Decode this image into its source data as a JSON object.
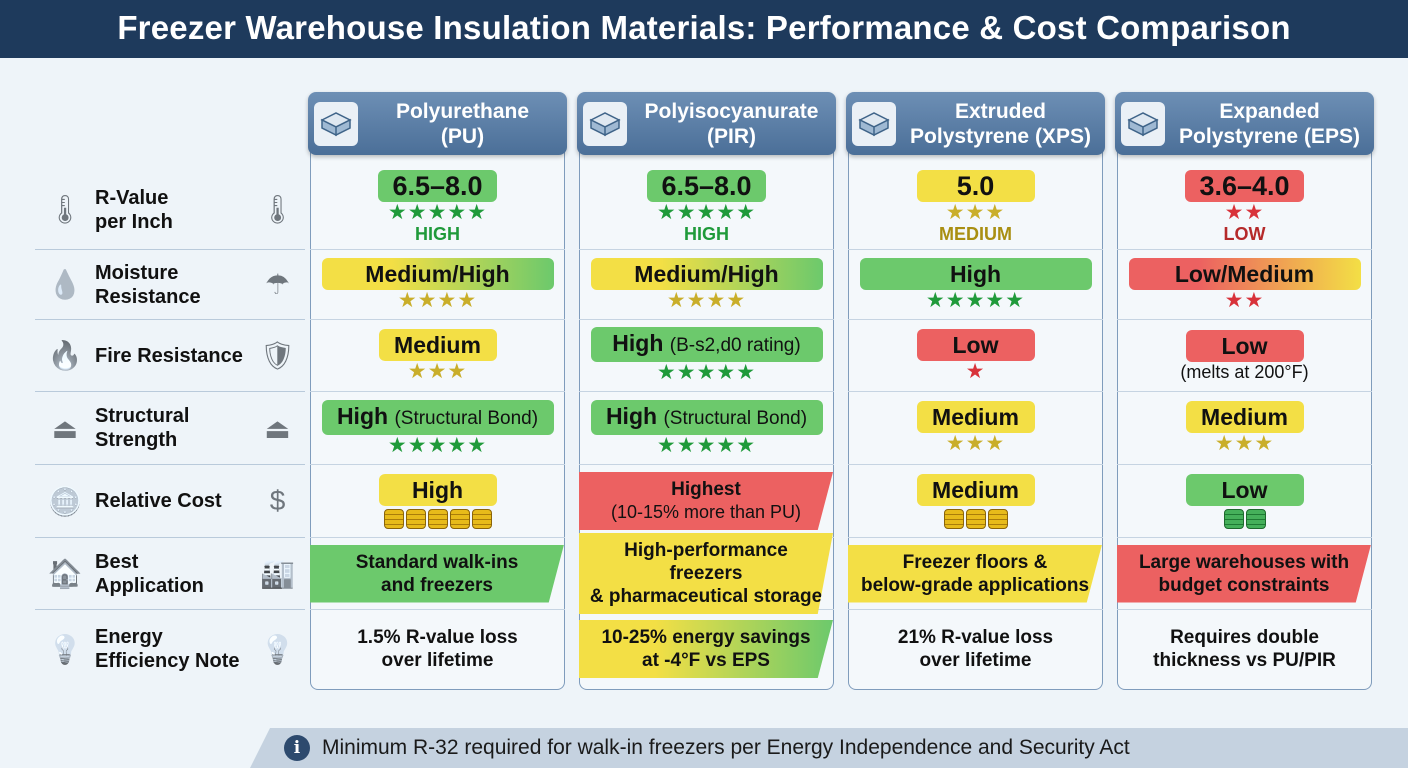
{
  "title": "Freezer Warehouse Insulation Materials: Performance & Cost Comparison",
  "colors": {
    "green": "#6cc96c",
    "yellow": "#f3df45",
    "red": "#ec6161",
    "star_green": "#1f9a3a",
    "star_gold": "#c9ae2a",
    "star_red": "#d8323a",
    "header": "#1e3a5c"
  },
  "rows": [
    {
      "label": "R-Value\nper Inch",
      "icon_left": "thermometer-up-icon",
      "icon_right": "thermometer-icon"
    },
    {
      "label": "Moisture\nResistance",
      "icon_left": "water-drops-icon",
      "icon_right": "umbrella-icon"
    },
    {
      "label": "Fire Resistance",
      "icon_left": "flame-shield-icon",
      "icon_right": "fire-shield-icon"
    },
    {
      "label": "Structural\nStrength",
      "icon_left": "weight-on-beam-icon",
      "icon_right": "weight-on-i-beam-icon"
    },
    {
      "label": "Relative Cost",
      "icon_left": "coin-stack-icon",
      "icon_right": "dollar-coin-icon"
    },
    {
      "label": "Best\nApplication",
      "icon_left": "warehouse-hand-icon",
      "icon_right": "warehouse-icon"
    },
    {
      "label": "Energy\nEfficiency Note",
      "icon_left": "lightbulb-leaf-icon",
      "icon_right": "lightbulb-leaf-icon"
    }
  ],
  "materials": [
    {
      "name": "Polyurethane\n(PU)",
      "icon": "panel-icon",
      "cells": [
        {
          "type": "rvalue",
          "text": "6.5–8.0",
          "color": "green",
          "stars": 5,
          "star_color": "star_green",
          "rating": "HIGH"
        },
        {
          "type": "wide",
          "text": "Medium/High",
          "color": "ylgr",
          "stars": 4,
          "star_color": "star_gold"
        },
        {
          "type": "small",
          "text": "Medium",
          "color": "yellow",
          "stars": 3,
          "star_color": "star_gold"
        },
        {
          "type": "wide",
          "text": "High",
          "sub": "(Structural Bond)",
          "color": "green",
          "stars": 5,
          "star_color": "star_green"
        },
        {
          "type": "cost",
          "text": "High",
          "color": "yellow",
          "coins": 5,
          "coin_color": "gold"
        },
        {
          "type": "banner",
          "text": "Standard walk-ins\nand freezers",
          "color": "green"
        },
        {
          "type": "plain",
          "text": "1.5% R-value loss\nover lifetime"
        }
      ]
    },
    {
      "name": "Polyisocyanurate\n(PIR)",
      "icon": "panel-icon",
      "cells": [
        {
          "type": "rvalue",
          "text": "6.5–8.0",
          "color": "green",
          "stars": 5,
          "star_color": "star_green",
          "rating": "HIGH"
        },
        {
          "type": "wide",
          "text": "Medium/High",
          "color": "ylgr",
          "stars": 4,
          "star_color": "star_gold"
        },
        {
          "type": "wide",
          "text": "High",
          "sub": "(B-s2,d0 rating)",
          "color": "green",
          "stars": 5,
          "star_color": "star_green"
        },
        {
          "type": "wide",
          "text": "High",
          "sub": "(Structural Bond)",
          "color": "green",
          "stars": 5,
          "star_color": "star_green"
        },
        {
          "type": "banner",
          "text": "Highest",
          "sub": "(10-15% more than PU)",
          "color": "red"
        },
        {
          "type": "banner",
          "text": "High-performance freezers\n& pharmaceutical storage",
          "color": "yellow"
        },
        {
          "type": "banner",
          "text": "10-25% energy savings\nat -4°F vs EPS",
          "color": "ylgr"
        }
      ]
    },
    {
      "name": "Extruded\nPolystyrene (XPS)",
      "icon": "board-icon",
      "cells": [
        {
          "type": "rvalue",
          "text": "5.0",
          "color": "yellow",
          "stars": 3,
          "star_color": "star_gold",
          "rating": "MEDIUM"
        },
        {
          "type": "wide",
          "text": "High",
          "color": "green",
          "stars": 5,
          "star_color": "star_green"
        },
        {
          "type": "small",
          "text": "Low",
          "color": "red",
          "stars": 1,
          "star_color": "star_red"
        },
        {
          "type": "small",
          "text": "Medium",
          "color": "yellow",
          "stars": 3,
          "star_color": "star_gold"
        },
        {
          "type": "cost",
          "text": "Medium",
          "color": "yellow",
          "coins": 3,
          "coin_color": "gold"
        },
        {
          "type": "banner",
          "text": "Freezer floors &\nbelow-grade applications",
          "color": "yellow"
        },
        {
          "type": "plain",
          "text": "21% R-value loss\nover lifetime"
        }
      ]
    },
    {
      "name": "Expanded\nPolystyrene (EPS)",
      "icon": "foam-board-icon",
      "cells": [
        {
          "type": "rvalue",
          "text": "3.6–4.0",
          "color": "red",
          "stars": 2,
          "star_color": "star_red",
          "rating": "LOW"
        },
        {
          "type": "wide",
          "text": "Low/Medium",
          "color": "rdyl",
          "stars": 2,
          "star_color": "star_red"
        },
        {
          "type": "small",
          "text": "Low",
          "color": "red",
          "note": "(melts at 200°F)"
        },
        {
          "type": "small",
          "text": "Medium",
          "color": "yellow",
          "stars": 3,
          "star_color": "star_gold"
        },
        {
          "type": "cost",
          "text": "Low",
          "color": "green",
          "coins": 2,
          "coin_color": "green"
        },
        {
          "type": "banner",
          "text": "Large warehouses with\nbudget constraints",
          "color": "red"
        },
        {
          "type": "plain",
          "text": "Requires double\nthickness vs PU/PIR"
        }
      ]
    }
  ],
  "footer": {
    "icon": "info-icon",
    "text": "Minimum R-32 required for walk-in freezers per Energy Independence and Security Act"
  }
}
